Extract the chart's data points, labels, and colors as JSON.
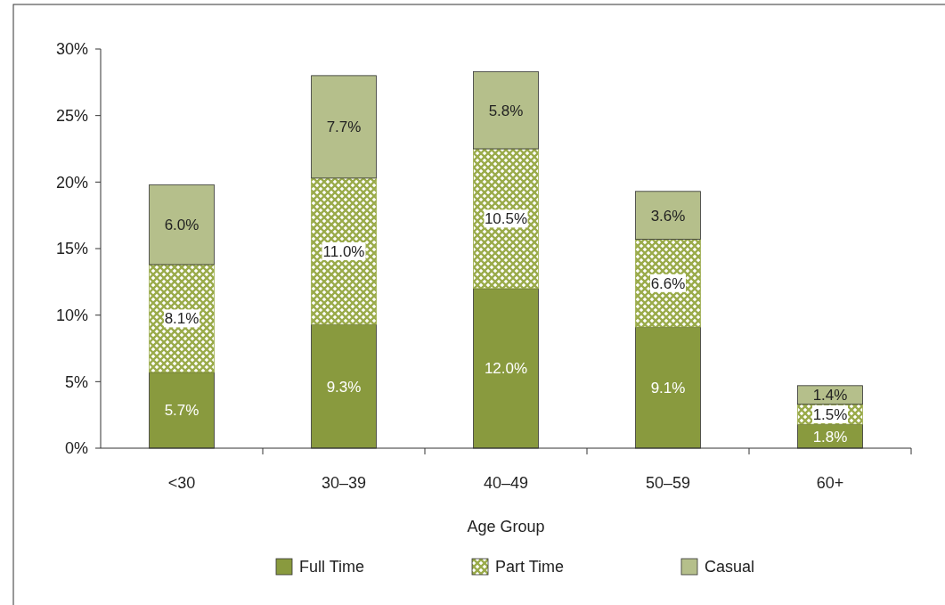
{
  "chart_data": {
    "type": "bar",
    "stacked": true,
    "xlabel": "Age Group",
    "categories": [
      "<30",
      "30–39",
      "40–49",
      "50–59",
      "60+"
    ],
    "series": [
      {
        "name": "Full Time",
        "color": "#899a3e",
        "values": [
          5.7,
          9.3,
          12.0,
          9.1,
          1.8
        ],
        "value_labels": [
          "5.7%",
          "9.3%",
          "12.0%",
          "9.1%",
          "1.8%"
        ]
      },
      {
        "name": "Part Time",
        "color": "#9aab4a",
        "values": [
          8.1,
          11.0,
          10.5,
          6.6,
          1.5
        ],
        "value_labels": [
          "8.1%",
          "11.0%",
          "10.5%",
          "6.6%",
          "1.5%"
        ]
      },
      {
        "name": "Casual",
        "color": "#b5bf8b",
        "values": [
          6.0,
          7.7,
          5.8,
          3.6,
          1.4
        ],
        "value_labels": [
          "6.0%",
          "7.7%",
          "5.8%",
          "3.6%",
          "1.4%"
        ]
      }
    ],
    "ylim": [
      0,
      30
    ],
    "yticks": [
      {
        "value": 0,
        "label": "0%"
      },
      {
        "value": 5,
        "label": "5%"
      },
      {
        "value": 10,
        "label": "10%"
      },
      {
        "value": 15,
        "label": "15%"
      },
      {
        "value": 20,
        "label": "20%"
      },
      {
        "value": 25,
        "label": "25%"
      },
      {
        "value": 30,
        "label": "30%"
      }
    ],
    "grid": false,
    "legend": "bottom"
  }
}
